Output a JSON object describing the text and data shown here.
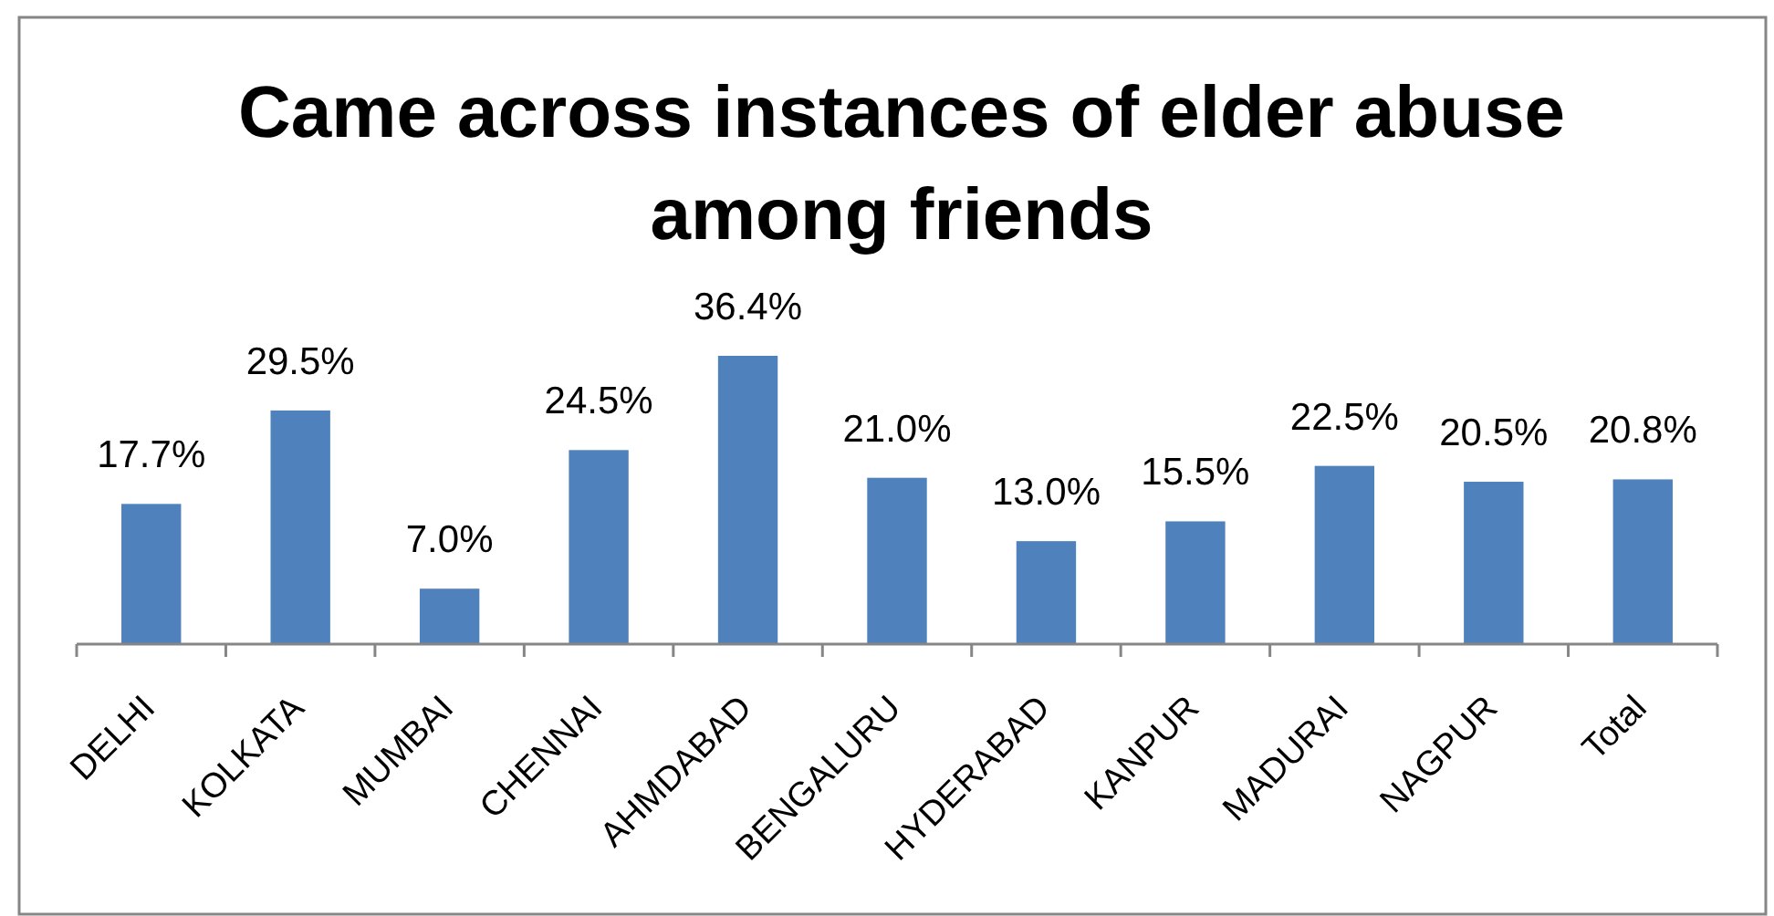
{
  "chart_data": {
    "type": "bar",
    "title": "Came across instances of elder abuse among friends",
    "categories": [
      "DELHI",
      "KOLKATA",
      "MUMBAI",
      "CHENNAI",
      "AHMDABAD",
      "BENGALURU",
      "HYDERABAD",
      "KANPUR",
      "MADURAI",
      "NAGPUR",
      "Total"
    ],
    "values": [
      17.7,
      29.5,
      7.0,
      24.5,
      36.4,
      21.0,
      13.0,
      15.5,
      22.5,
      20.5,
      20.8
    ],
    "value_labels": [
      "17.7%",
      "29.5%",
      "7.0%",
      "24.5%",
      "36.4%",
      "21.0%",
      "13.0%",
      "15.5%",
      "22.5%",
      "20.5%",
      "20.8%"
    ],
    "color": "#4f81bd",
    "tick_labels": "x"
  }
}
